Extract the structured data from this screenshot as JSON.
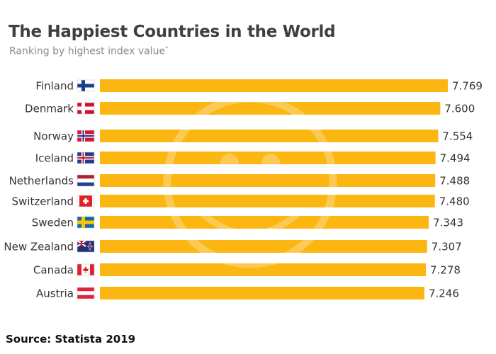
{
  "title": "The Happiest Countries in the World",
  "subtitle": "Ranking by highest index value",
  "subtitle_marker": "*",
  "source": "Source: Statista 2019",
  "colors": {
    "bar": "#fbb612",
    "watermark": "#ffffff"
  },
  "watermark_icon": "smiley-face-icon",
  "chart_data": {
    "type": "bar",
    "orientation": "horizontal",
    "title": "The Happiest Countries in the World",
    "subtitle": "Ranking by highest index value",
    "categories": [
      "Finland",
      "Denmark",
      "Norway",
      "Iceland",
      "Netherlands",
      "Switzerland",
      "Sweden",
      "New Zealand",
      "Canada",
      "Austria"
    ],
    "values": [
      7.769,
      7.6,
      7.554,
      7.494,
      7.488,
      7.48,
      7.343,
      7.307,
      7.278,
      7.246
    ],
    "value_labels": [
      "7.769",
      "7.600",
      "7.554",
      "7.494",
      "7.488",
      "7.480",
      "7.343",
      "7.307",
      "7.278",
      "7.246"
    ],
    "flags": [
      "finland-flag-icon",
      "denmark-flag-icon",
      "norway-flag-icon",
      "iceland-flag-icon",
      "netherlands-flag-icon",
      "switzerland-flag-icon",
      "sweden-flag-icon",
      "new-zealand-flag-icon",
      "canada-flag-icon",
      "austria-flag-icon"
    ],
    "xlim": [
      0,
      7.769
    ],
    "grid": false,
    "legend": "none"
  }
}
